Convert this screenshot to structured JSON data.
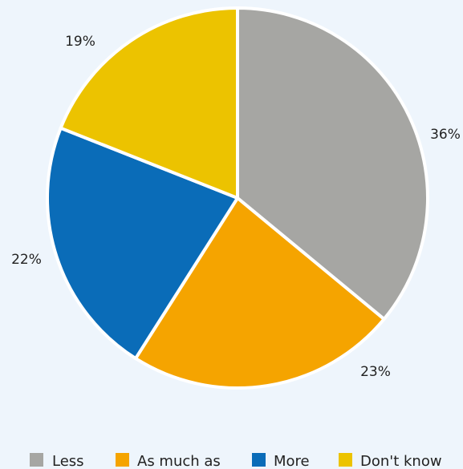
{
  "chart_data": {
    "type": "pie",
    "categories": [
      "Less",
      "As much as",
      "More",
      "Don't know"
    ],
    "values": [
      36,
      23,
      22,
      19
    ],
    "labels": [
      "36%",
      "23%",
      "22%",
      "19%"
    ],
    "colors": [
      "#a6a6a3",
      "#f5a400",
      "#0a6cb8",
      "#ecc300"
    ],
    "start_angle_deg": 0,
    "direction": "clockwise",
    "legend": {
      "placement": "bottom",
      "items": [
        "Less",
        "As much as",
        "More",
        "Don't know"
      ]
    }
  }
}
